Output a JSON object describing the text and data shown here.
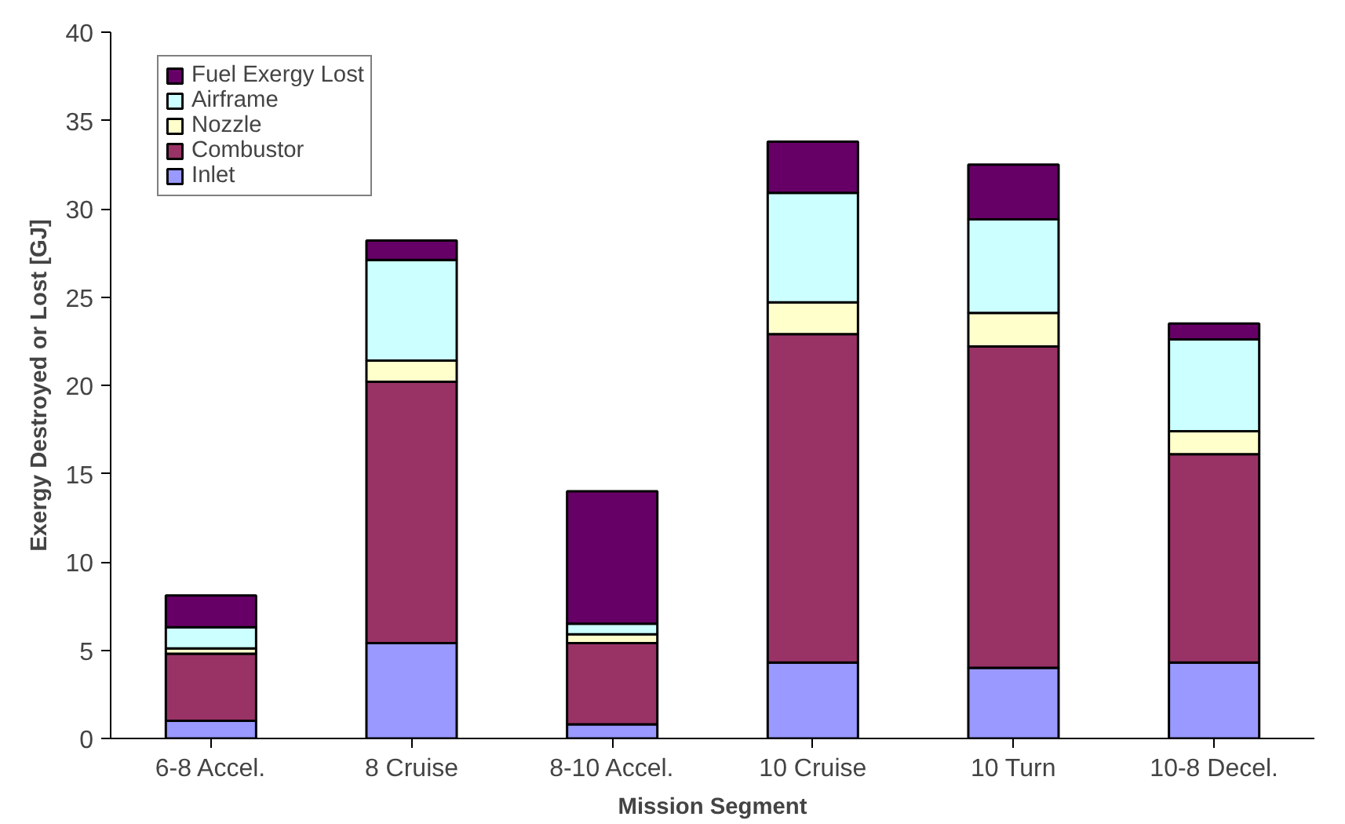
{
  "chart_data": {
    "type": "bar",
    "stacked": true,
    "xlabel": "Mission Segment",
    "ylabel": "Exergy Destroyed or Lost [GJ]",
    "categories": [
      "6-8 Accel.",
      "8 Cruise",
      "8-10 Accel.",
      "10 Cruise",
      "10 Turn",
      "10-8 Decel."
    ],
    "series": [
      {
        "name": "Inlet",
        "color": "#9999ff",
        "values": [
          1.0,
          5.4,
          0.8,
          4.3,
          4.0,
          4.3
        ]
      },
      {
        "name": "Combustor",
        "color": "#993366",
        "values": [
          3.8,
          14.8,
          4.6,
          18.6,
          18.2,
          11.8
        ]
      },
      {
        "name": "Nozzle",
        "color": "#ffffcc",
        "values": [
          0.3,
          1.2,
          0.5,
          1.8,
          1.9,
          1.3
        ]
      },
      {
        "name": "Airframe",
        "color": "#ccffff",
        "values": [
          1.2,
          5.7,
          0.6,
          6.2,
          5.3,
          5.2
        ]
      },
      {
        "name": "Fuel Exergy Lost",
        "color": "#660066",
        "values": [
          1.8,
          1.1,
          7.5,
          2.9,
          3.1,
          0.9
        ]
      }
    ],
    "ylim": [
      0,
      40
    ],
    "yticks": [
      0,
      5,
      10,
      15,
      20,
      25,
      30,
      35,
      40
    ],
    "grid": false,
    "legend": "top left"
  }
}
